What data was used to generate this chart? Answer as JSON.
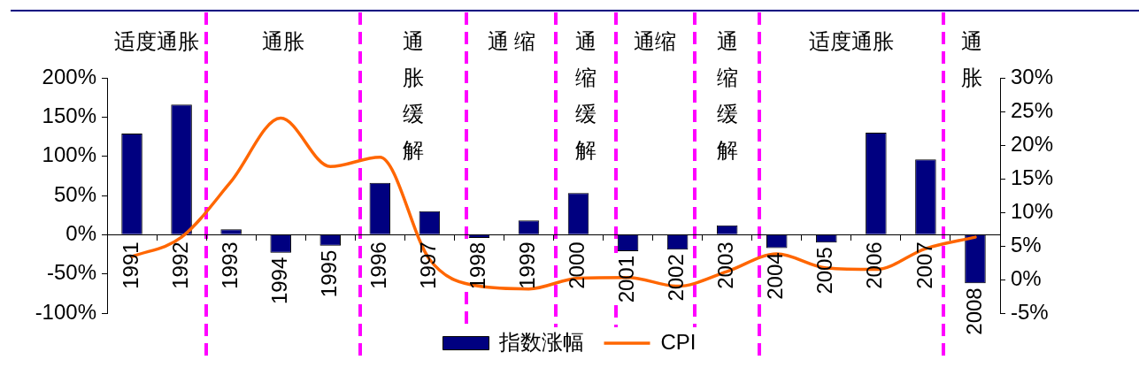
{
  "chart_data": {
    "type": "bar",
    "categories": [
      "1991",
      "1992",
      "1993",
      "1994",
      "1995",
      "1996",
      "1997",
      "1998",
      "1999",
      "2000",
      "2001",
      "2002",
      "2003",
      "2004",
      "2005",
      "2006",
      "2007",
      "2008"
    ],
    "series": [
      {
        "name": "指数涨幅",
        "color": "#000080",
        "values": [
          129,
          166,
          7,
          -23,
          -14,
          66,
          30,
          -4,
          18,
          53,
          -21,
          -19,
          12,
          -17,
          -10,
          130,
          96,
          -62
        ]
      },
      {
        "name": "CPI",
        "type": "line",
        "axis": "y2",
        "color": "#ff6600",
        "values": [
          3.4,
          6.3,
          14.6,
          24.0,
          16.8,
          18.2,
          3.0,
          -1.0,
          -1.4,
          0.2,
          0.3,
          -1.0,
          1.2,
          3.8,
          1.7,
          1.5,
          4.6,
          6.3
        ]
      }
    ],
    "ylim": [
      -100,
      200
    ],
    "yticks": [
      {
        "value": 200,
        "label": "200%"
      },
      {
        "value": 150,
        "label": "150%"
      },
      {
        "value": 100,
        "label": "100%"
      },
      {
        "value": 50,
        "label": "50%"
      },
      {
        "value": 0,
        "label": "0%"
      },
      {
        "value": -50,
        "label": "-50%"
      },
      {
        "value": -100,
        "label": "-100%"
      }
    ],
    "y2lim": [
      -5,
      30
    ],
    "y2ticks": [
      {
        "value": 30,
        "label": "30%"
      },
      {
        "value": 25,
        "label": "25%"
      },
      {
        "value": 20,
        "label": "20%"
      },
      {
        "value": 15,
        "label": "15%"
      },
      {
        "value": 10,
        "label": "10%"
      },
      {
        "value": 5,
        "label": "5%"
      },
      {
        "value": 0,
        "label": "0%"
      },
      {
        "value": -5,
        "label": "-5%"
      }
    ],
    "annotations": [
      "适度通胀",
      "通胀",
      "通胀缓解",
      "通 缩",
      "通缩缓解",
      "通缩",
      "通缩缓解",
      "适度通胀",
      "通胀"
    ],
    "legend": "bottom"
  }
}
